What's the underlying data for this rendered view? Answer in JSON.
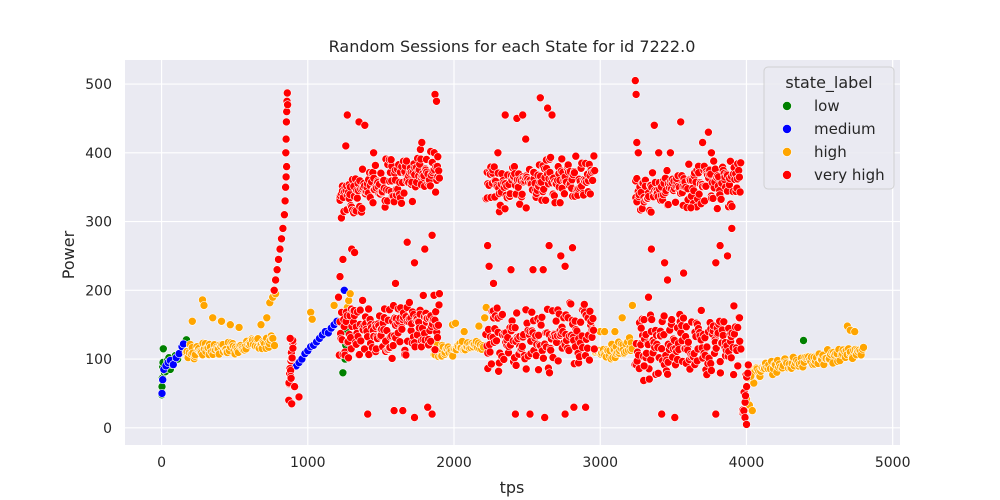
{
  "chart_data": {
    "type": "scatter",
    "title": "Random Sessions for each State for id 7222.0",
    "xlabel": "tps",
    "ylabel": "Power",
    "xlim": [
      -250,
      5050
    ],
    "ylim": [
      -25,
      535
    ],
    "xticks": [
      0,
      1000,
      2000,
      3000,
      4000,
      5000
    ],
    "yticks": [
      0,
      100,
      200,
      300,
      400,
      500
    ],
    "grid": true,
    "legend": {
      "title": "state_label",
      "placement": "top-right",
      "entries": [
        {
          "name": "low",
          "color": "#008000"
        },
        {
          "name": "medium",
          "color": "#0000ff"
        },
        {
          "name": "high",
          "color": "#ffa500"
        },
        {
          "name": "very high",
          "color": "#ff0000"
        }
      ]
    },
    "series": [
      {
        "name": "low",
        "color": "#008000",
        "points": [
          [
            2,
            48
          ],
          [
            3,
            60
          ],
          [
            5,
            72
          ],
          [
            8,
            88
          ],
          [
            10,
            95
          ],
          [
            12,
            115
          ],
          [
            20,
            80
          ],
          [
            30,
            82
          ],
          [
            40,
            98
          ],
          [
            50,
            102
          ],
          [
            60,
            85
          ],
          [
            70,
            92
          ],
          [
            80,
            96
          ],
          [
            95,
            105
          ],
          [
            110,
            100
          ],
          [
            170,
            128
          ],
          [
            1240,
            80
          ],
          [
            1255,
            100
          ],
          [
            1260,
            120
          ],
          [
            1265,
            140
          ],
          [
            4390,
            127
          ]
        ]
      },
      {
        "name": "medium",
        "color": "#0000ff",
        "points": [
          [
            3,
            50
          ],
          [
            8,
            70
          ],
          [
            15,
            85
          ],
          [
            30,
            90
          ],
          [
            45,
            95
          ],
          [
            60,
            98
          ],
          [
            80,
            92
          ],
          [
            100,
            102
          ],
          [
            120,
            108
          ],
          [
            140,
            118
          ],
          [
            150,
            122
          ],
          [
            920,
            90
          ],
          [
            940,
            95
          ],
          [
            960,
            100
          ],
          [
            980,
            108
          ],
          [
            1000,
            112
          ],
          [
            1020,
            118
          ],
          [
            1040,
            120
          ],
          [
            1060,
            125
          ],
          [
            1080,
            130
          ],
          [
            1100,
            135
          ],
          [
            1120,
            140
          ],
          [
            1140,
            138
          ],
          [
            1160,
            145
          ],
          [
            1180,
            150
          ],
          [
            1200,
            155
          ],
          [
            1230,
            128
          ],
          [
            1250,
            200
          ],
          [
            4310,
            92
          ],
          [
            4330,
            95
          ],
          [
            4350,
            98
          ],
          [
            4370,
            100
          ],
          [
            4400,
            96
          ]
        ]
      },
      {
        "name": "high",
        "color": "#ffa500",
        "bands": [
          {
            "x_start": 170,
            "x_end": 770,
            "y_start": 108,
            "y_end": 128,
            "spread": 14,
            "count": 95
          },
          {
            "x_start": 1850,
            "x_end": 2200,
            "y_start": 110,
            "y_end": 118,
            "spread": 14,
            "count": 55
          },
          {
            "x_start": 2970,
            "x_end": 3220,
            "y_start": 108,
            "y_end": 122,
            "spread": 14,
            "count": 45
          },
          {
            "x_start": 4010,
            "x_end": 4800,
            "y_start": 82,
            "y_end": 112,
            "spread": 12,
            "count": 110
          }
        ],
        "points": [
          [
            210,
            155
          ],
          [
            280,
            186
          ],
          [
            290,
            178
          ],
          [
            350,
            160
          ],
          [
            410,
            155
          ],
          [
            470,
            150
          ],
          [
            530,
            146
          ],
          [
            680,
            150
          ],
          [
            720,
            160
          ],
          [
            740,
            182
          ],
          [
            760,
            190
          ],
          [
            780,
            195
          ],
          [
            1020,
            168
          ],
          [
            1030,
            158
          ],
          [
            1180,
            178
          ],
          [
            1270,
            175
          ],
          [
            1280,
            185
          ],
          [
            1290,
            195
          ],
          [
            1260,
            165
          ],
          [
            1990,
            150
          ],
          [
            2010,
            152
          ],
          [
            2070,
            140
          ],
          [
            2170,
            148
          ],
          [
            2210,
            160
          ],
          [
            2220,
            175
          ],
          [
            2740,
            160
          ],
          [
            3000,
            140
          ],
          [
            3030,
            140
          ],
          [
            3100,
            140
          ],
          [
            3150,
            160
          ],
          [
            3220,
            178
          ],
          [
            4000,
            42
          ],
          [
            4020,
            33
          ],
          [
            4040,
            25
          ],
          [
            4050,
            65
          ],
          [
            4030,
            75
          ],
          [
            4690,
            148
          ],
          [
            4710,
            142
          ],
          [
            4740,
            140
          ]
        ]
      },
      {
        "name": "very high",
        "color": "#ff0000",
        "bands": [
          {
            "x_start": 1215,
            "x_end": 1900,
            "y_start": 335,
            "y_end": 375,
            "spread": 40,
            "count": 170
          },
          {
            "x_start": 1215,
            "x_end": 1900,
            "y_start": 140,
            "y_end": 150,
            "spread": 50,
            "count": 170
          },
          {
            "x_start": 2220,
            "x_end": 2960,
            "y_start": 350,
            "y_end": 365,
            "spread": 40,
            "count": 170
          },
          {
            "x_start": 2220,
            "x_end": 2960,
            "y_start": 125,
            "y_end": 140,
            "spread": 55,
            "count": 170
          },
          {
            "x_start": 3240,
            "x_end": 3960,
            "y_start": 345,
            "y_end": 360,
            "spread": 40,
            "count": 165
          },
          {
            "x_start": 3240,
            "x_end": 3960,
            "y_start": 115,
            "y_end": 130,
            "spread": 55,
            "count": 165
          },
          {
            "x_start": 870,
            "x_end": 900,
            "y_start": 60,
            "y_end": 120,
            "spread": 25,
            "count": 18
          },
          {
            "x_start": 3970,
            "x_end": 4010,
            "y_start": 30,
            "y_end": 80,
            "spread": 20,
            "count": 12
          }
        ],
        "points": [
          [
            770,
            200
          ],
          [
            780,
            215
          ],
          [
            790,
            230
          ],
          [
            800,
            245
          ],
          [
            810,
            260
          ],
          [
            820,
            275
          ],
          [
            830,
            290
          ],
          [
            840,
            310
          ],
          [
            845,
            330
          ],
          [
            848,
            350
          ],
          [
            852,
            365
          ],
          [
            855,
            380
          ],
          [
            850,
            400
          ],
          [
            852,
            420
          ],
          [
            854,
            445
          ],
          [
            856,
            460
          ],
          [
            858,
            475
          ],
          [
            860,
            487
          ],
          [
            862,
            470
          ],
          [
            870,
            40
          ],
          [
            880,
            130
          ],
          [
            890,
            35
          ],
          [
            910,
            60
          ],
          [
            940,
            45
          ],
          [
            1210,
            190
          ],
          [
            1220,
            220
          ],
          [
            1240,
            245
          ],
          [
            1260,
            410
          ],
          [
            1270,
            455
          ],
          [
            1300,
            260
          ],
          [
            1320,
            255
          ],
          [
            1350,
            445
          ],
          [
            1390,
            440
          ],
          [
            1450,
            400
          ],
          [
            1570,
            390
          ],
          [
            1600,
            210
          ],
          [
            1650,
            25
          ],
          [
            1680,
            270
          ],
          [
            1730,
            240
          ],
          [
            1770,
            405
          ],
          [
            1780,
            415
          ],
          [
            1800,
            260
          ],
          [
            1820,
            30
          ],
          [
            1850,
            280
          ],
          [
            1870,
            485
          ],
          [
            1880,
            475
          ],
          [
            1850,
            20
          ],
          [
            1410,
            20
          ],
          [
            1590,
            25
          ],
          [
            1730,
            15
          ],
          [
            2230,
            265
          ],
          [
            2240,
            235
          ],
          [
            2270,
            210
          ],
          [
            2300,
            400
          ],
          [
            2350,
            455
          ],
          [
            2390,
            230
          ],
          [
            2420,
            20
          ],
          [
            2430,
            450
          ],
          [
            2470,
            455
          ],
          [
            2490,
            420
          ],
          [
            2540,
            230
          ],
          [
            2590,
            480
          ],
          [
            2610,
            230
          ],
          [
            2640,
            465
          ],
          [
            2650,
            265
          ],
          [
            2670,
            455
          ],
          [
            2730,
            250
          ],
          [
            2760,
            235
          ],
          [
            2810,
            262
          ],
          [
            2520,
            20
          ],
          [
            2620,
            15
          ],
          [
            2760,
            20
          ],
          [
            2820,
            30
          ],
          [
            2900,
            30
          ],
          [
            3240,
            505
          ],
          [
            3245,
            485
          ],
          [
            3250,
            415
          ],
          [
            3260,
            400
          ],
          [
            3280,
            145
          ],
          [
            3300,
            90
          ],
          [
            3330,
            190
          ],
          [
            3350,
            260
          ],
          [
            3370,
            440
          ],
          [
            3400,
            400
          ],
          [
            3440,
            240
          ],
          [
            3460,
            215
          ],
          [
            3480,
            400
          ],
          [
            3550,
            445
          ],
          [
            3570,
            225
          ],
          [
            3620,
            320
          ],
          [
            3700,
            415
          ],
          [
            3740,
            430
          ],
          [
            3760,
            400
          ],
          [
            3790,
            240
          ],
          [
            3820,
            265
          ],
          [
            3870,
            250
          ],
          [
            3900,
            290
          ],
          [
            3420,
            20
          ],
          [
            3510,
            15
          ],
          [
            3790,
            20
          ],
          [
            3990,
            15
          ],
          [
            4000,
            5
          ]
        ]
      }
    ]
  }
}
